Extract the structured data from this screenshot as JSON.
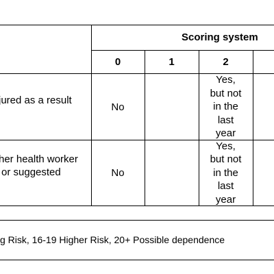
{
  "table": {
    "header_group": "Scoring system",
    "score_columns": [
      "0",
      "1",
      "2"
    ],
    "rows": [
      {
        "question_lines": [
          "jured as a result"
        ],
        "scores": [
          "No",
          "",
          "Yes, but not in the last year"
        ],
        "score2_lines": [
          "Yes,",
          "but not",
          "in the",
          "last",
          "year"
        ]
      },
      {
        "question_lines": [
          "her health worker",
          "or suggested"
        ],
        "scores": [
          "No",
          "",
          "Yes, but not in the last year"
        ],
        "score2_lines": [
          "Yes,",
          "but not",
          "in the",
          "last",
          "year"
        ]
      }
    ]
  },
  "footnote": "g Risk, 16-19 Higher Risk, 20+ Possible dependence"
}
